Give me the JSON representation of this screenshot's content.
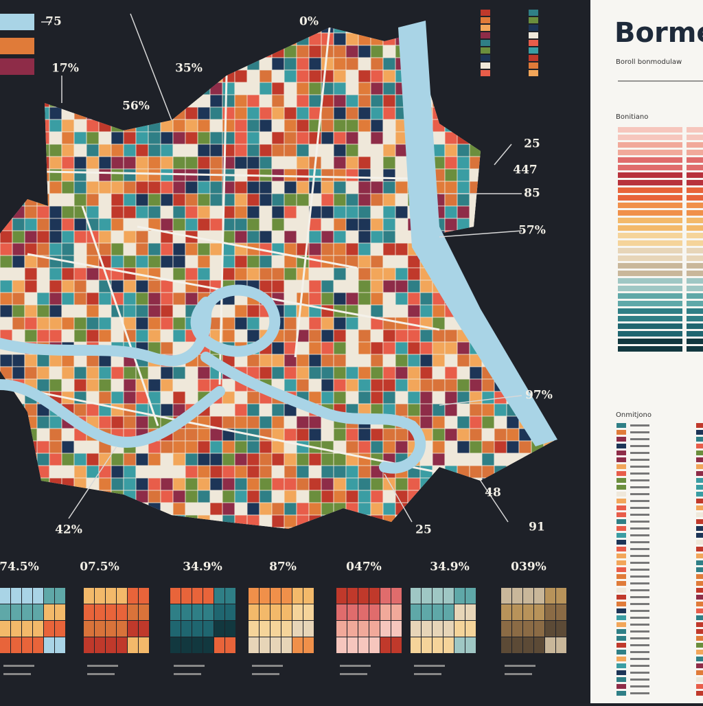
{
  "map": {
    "labels": [
      "75",
      "17%",
      "35%",
      "56%",
      "0%",
      "25",
      "447",
      "85",
      "57%",
      "97%",
      "42%",
      "48",
      "25",
      "91"
    ]
  },
  "swatches": {
    "labels": [
      "74.5%",
      "07.5%",
      "34.9%",
      "87%",
      "047%",
      "34.9%",
      "039%"
    ]
  },
  "panel": {
    "title": "Borme",
    "subtitle": "Boroll bonmodulaw",
    "section1": "Bonitiano",
    "section2": "Onmitjono"
  }
}
